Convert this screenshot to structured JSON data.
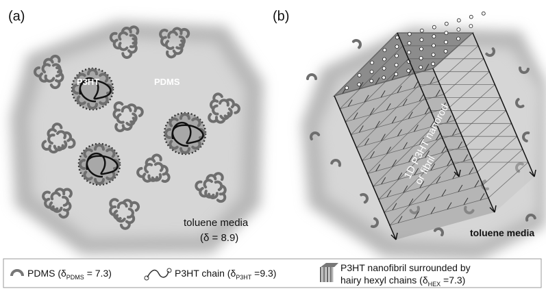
{
  "panels": [
    {
      "label": "(a)",
      "annotations": [
        "P3HT",
        "PDMS"
      ],
      "medium": "toluene media",
      "delta": "(δ = 8.9)"
    },
    {
      "label": "(b)",
      "rod_label": [
        "1D P3HT nanorod",
        "or fibril"
      ],
      "medium": "toluene media"
    }
  ],
  "legend": [
    {
      "parts": [
        "PDMS (δ",
        "PDMS",
        " = 7.3)"
      ]
    },
    {
      "parts": [
        "P3HT chain (δ",
        "P3HT",
        " =9.3)"
      ]
    },
    {
      "line1": "P3HT nanofibril surrounded by",
      "line2": [
        "hairy hexyl chains (δ",
        "HEX",
        " =7.3)"
      ]
    }
  ]
}
